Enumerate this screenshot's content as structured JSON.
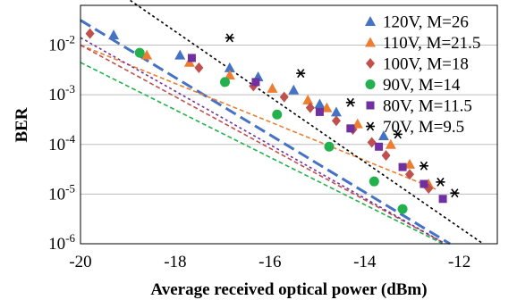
{
  "chart_data": {
    "type": "scatter",
    "title": "",
    "xlabel": "Average received optical power (dBm)",
    "ylabel": "BER",
    "xlim": [
      -20,
      -11.2
    ],
    "ylim_log10": [
      -6,
      -1.2
    ],
    "y_scale": "log",
    "grid": "horizontal",
    "legend_position": "top-right",
    "x_ticks": [
      {
        "value": -20,
        "label": "-20"
      },
      {
        "value": -18,
        "label": "-18"
      },
      {
        "value": -16,
        "label": "-16"
      },
      {
        "value": -14,
        "label": "-14"
      },
      {
        "value": -12,
        "label": "-12"
      }
    ],
    "y_ticks": [
      {
        "exp": -2,
        "base": "10",
        "sup": "-2"
      },
      {
        "exp": -3,
        "base": "10",
        "sup": "-3"
      },
      {
        "exp": -4,
        "base": "10",
        "sup": "-4"
      },
      {
        "exp": -5,
        "base": "10",
        "sup": "-5"
      },
      {
        "exp": -6,
        "base": "10",
        "sup": "-6"
      }
    ],
    "series": [
      {
        "name": "120V, M=26",
        "marker": "triangle",
        "color": "#4472C4",
        "line_style": "dashed-long",
        "fit": [
          [
            -20,
            -1.5
          ],
          [
            -12.2,
            -6
          ]
        ],
        "points": [
          [
            -19.3,
            0.016
          ],
          [
            -17.9,
            0.0063
          ],
          [
            -16.85,
            0.0035
          ],
          [
            -16.25,
            0.0023
          ],
          [
            -15.5,
            0.00125
          ],
          [
            -14.95,
            0.00065
          ],
          [
            -14.6,
            0.00045
          ],
          [
            -13.6,
            0.00015
          ]
        ]
      },
      {
        "name": "110V, M=21.5",
        "marker": "triangle",
        "color": "#ED7D31",
        "line_style": "dashed",
        "fit": [
          [
            -20,
            -2.0
          ],
          [
            -12.5,
            -4.9
          ]
        ],
        "points": [
          [
            -18.6,
            0.0063
          ],
          [
            -17.7,
            0.0045
          ],
          [
            -16.85,
            0.0025
          ],
          [
            -15.95,
            0.00135
          ],
          [
            -15.2,
            0.00079
          ],
          [
            -14.8,
            0.00055
          ],
          [
            -14.15,
            0.00026
          ],
          [
            -13.45,
            0.0001
          ],
          [
            -13.05,
            4e-05
          ],
          [
            -12.65,
            1.6e-05
          ]
        ]
      },
      {
        "name": "100V, M=18",
        "marker": "diamond",
        "color": "#C0504D",
        "line_style": "dashed",
        "fit": [
          [
            -20,
            -2.0
          ],
          [
            -12.3,
            -6
          ]
        ],
        "points": [
          [
            -19.8,
            0.017
          ],
          [
            -17.5,
            0.0035
          ],
          [
            -16.35,
            0.0015
          ],
          [
            -15.7,
            0.0009
          ],
          [
            -15.15,
            0.00055
          ],
          [
            -14.6,
            0.0003
          ],
          [
            -14.25,
            0.0002
          ],
          [
            -13.85,
            0.00011
          ],
          [
            -13.55,
            6e-05
          ],
          [
            -13.05,
            2.5e-05
          ],
          [
            -12.65,
            1.3e-05
          ]
        ]
      },
      {
        "name": "90V, M=14",
        "marker": "circle",
        "color": "#22B14C",
        "line_style": "dashed",
        "fit": [
          [
            -20,
            -2.35
          ],
          [
            -12.35,
            -6
          ]
        ],
        "points": [
          [
            -18.75,
            0.007
          ],
          [
            -16.95,
            0.0018
          ],
          [
            -15.85,
            0.0004
          ],
          [
            -14.75,
            9e-05
          ],
          [
            -13.8,
            1.8e-05
          ],
          [
            -13.2,
            5e-06
          ]
        ]
      },
      {
        "name": "80V, M=11.5",
        "marker": "square",
        "color": "#7030A0",
        "line_style": "dotted",
        "fit": [
          [
            -20,
            -1.85
          ],
          [
            -12.3,
            -6
          ]
        ],
        "points": [
          [
            -17.65,
            0.0055
          ],
          [
            -16.3,
            0.0018
          ],
          [
            -14.95,
            0.00045
          ],
          [
            -14.3,
            0.00021
          ],
          [
            -13.7,
            9e-05
          ],
          [
            -13.2,
            3.5e-05
          ],
          [
            -12.75,
            1.6e-05
          ],
          [
            -12.35,
            8e-06
          ]
        ]
      },
      {
        "name": "70V, M=9.5",
        "marker": "star",
        "color": "#000000",
        "line_style": "dotted",
        "fit": [
          [
            -18.95,
            -1.1
          ],
          [
            -11.5,
            -6
          ]
        ],
        "points": [
          [
            -16.85,
            0.014
          ],
          [
            -15.35,
            0.0027
          ],
          [
            -14.3,
            0.0007
          ],
          [
            -13.3,
            0.00016
          ],
          [
            -12.75,
            3.7e-05
          ],
          [
            -12.4,
            1.75e-05
          ],
          [
            -12.1,
            1.05e-05
          ]
        ]
      }
    ]
  }
}
